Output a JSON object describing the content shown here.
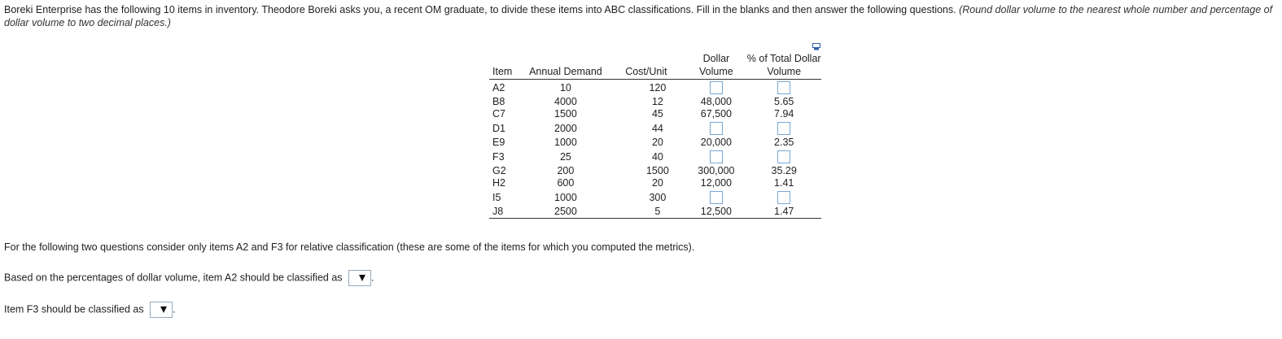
{
  "intro": {
    "main": "Boreki Enterprise has the following 10 items in inventory.  Theodore Boreki asks you, a recent OM graduate, to divide these items into ABC classifications. Fill in the blanks and then answer the following questions. ",
    "note": "(Round dollar volume to the nearest whole number and percentage of dollar volume to two decimal places.)"
  },
  "table": {
    "headers": {
      "item": "Item",
      "demand": "Annual Demand",
      "cost": "Cost/Unit",
      "dv_top": "Dollar",
      "dv_bottom": "Volume",
      "pct_top": "% of Total Dollar",
      "pct_bottom": "Volume"
    },
    "rows": [
      {
        "item": "A2",
        "demand": "10",
        "cost": "120",
        "dv": "",
        "pct": ""
      },
      {
        "item": "B8",
        "demand": "4000",
        "cost": "12",
        "dv": "48,000",
        "pct": "5.65"
      },
      {
        "item": "C7",
        "demand": "1500",
        "cost": "45",
        "dv": "67,500",
        "pct": "7.94"
      },
      {
        "item": "D1",
        "demand": "2000",
        "cost": "44",
        "dv": "",
        "pct": ""
      },
      {
        "item": "E9",
        "demand": "1000",
        "cost": "20",
        "dv": "20,000",
        "pct": "2.35"
      },
      {
        "item": "F3",
        "demand": "25",
        "cost": "40",
        "dv": "",
        "pct": ""
      },
      {
        "item": "G2",
        "demand": "200",
        "cost": "1500",
        "dv": "300,000",
        "pct": "35.29"
      },
      {
        "item": "H2",
        "demand": "600",
        "cost": "20",
        "dv": "12,000",
        "pct": "1.41"
      },
      {
        "item": "I5",
        "demand": "1000",
        "cost": "300",
        "dv": "",
        "pct": ""
      },
      {
        "item": "J8",
        "demand": "2500",
        "cost": "5",
        "dv": "12,500",
        "pct": "1.47"
      }
    ]
  },
  "questions": {
    "intro": "For the following two questions consider only items A2 and F3 for relative classification (these are some of the items for which you computed the metrics).",
    "q1": "Based on the percentages of dollar volume, item A2 should be classified as",
    "q2": "Item F3 should be classified as",
    "period": "."
  }
}
